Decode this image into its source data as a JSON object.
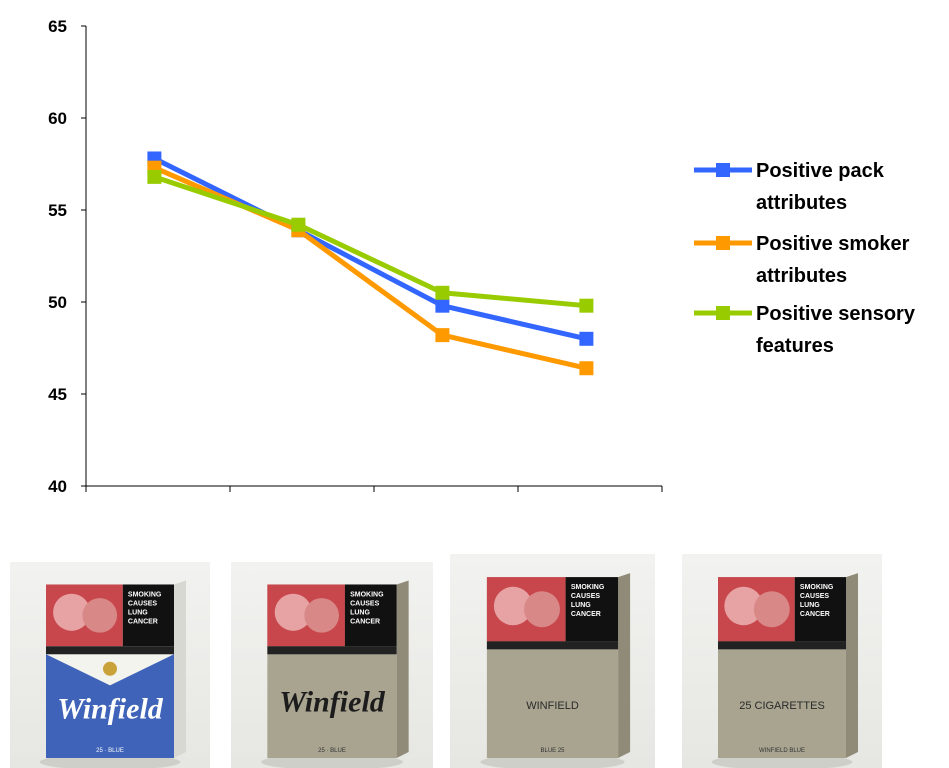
{
  "chart_data": {
    "type": "line",
    "categories": [
      "",
      "",
      "",
      ""
    ],
    "ylim": [
      40,
      65
    ],
    "yticks": [
      40,
      45,
      50,
      55,
      60,
      65
    ],
    "grid": false,
    "legend_position": "right",
    "series": [
      {
        "name": "Positive pack attributes",
        "name_lines": [
          "Positive pack",
          "attributes"
        ],
        "color": "#3366ff",
        "values": [
          57.8,
          53.9,
          49.8,
          48.0
        ]
      },
      {
        "name": "Positive smoker attributes",
        "name_lines": [
          "Positive smoker",
          "attributes"
        ],
        "color": "#ff9900",
        "values": [
          57.3,
          53.9,
          48.2,
          46.4
        ]
      },
      {
        "name": "Positive sensory features",
        "name_lines": [
          "Positive sensory",
          "features"
        ],
        "color": "#99cc00",
        "values": [
          56.8,
          54.2,
          50.5,
          49.8
        ]
      }
    ]
  },
  "packs": [
    {
      "warning": [
        "SMOKING",
        "CAUSES",
        "LUNG",
        "CANCER"
      ],
      "brand": "Winfield",
      "subtext": "25 · BLUE",
      "style": "branded"
    },
    {
      "warning": [
        "SMOKING",
        "CAUSES",
        "LUNG",
        "CANCER"
      ],
      "brand": "Winfield",
      "subtext": "25 · BLUE",
      "style": "plain-logo"
    },
    {
      "warning": [
        "SMOKING",
        "CAUSES",
        "LUNG",
        "CANCER"
      ],
      "brand": "WINFIELD",
      "subtext": "BLUE 25",
      "style": "plain-text"
    },
    {
      "warning": [
        "SMOKING",
        "CAUSES",
        "LUNG",
        "CANCER"
      ],
      "brand": "25 CIGARETTES",
      "subtext": "WINFIELD BLUE",
      "style": "plain-generic"
    }
  ],
  "colors": {
    "pack_blue": "#3e63b8",
    "pack_drab": "#a8a490",
    "pack_white": "#f4f4ee"
  }
}
